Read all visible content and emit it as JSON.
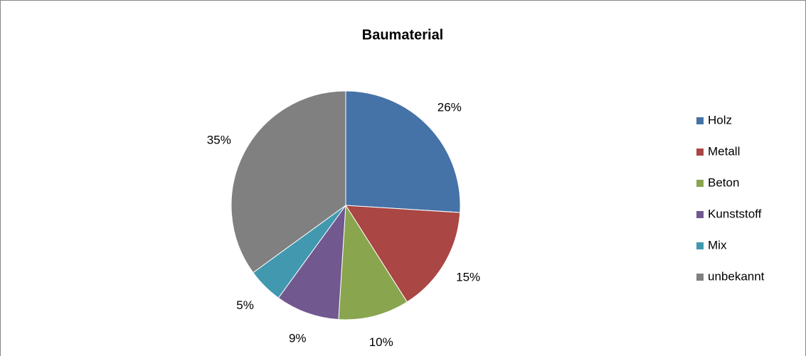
{
  "chart_data": {
    "type": "pie",
    "title": "Baumaterial",
    "categories": [
      "Holz",
      "Metall",
      "Beton",
      "Kunststoff",
      "Mix",
      "unbekannt"
    ],
    "values": [
      26,
      15,
      10,
      9,
      5,
      35
    ],
    "value_labels": [
      "26%",
      "15%",
      "10%",
      "9%",
      "5%",
      "35%"
    ],
    "colors": [
      "#4572a7",
      "#aa4643",
      "#89a54e",
      "#71588f",
      "#4198af",
      "#808080"
    ],
    "legend": "right"
  }
}
